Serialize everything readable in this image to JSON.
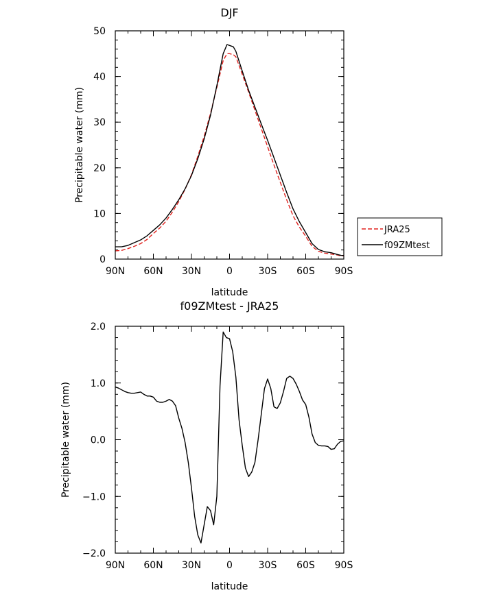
{
  "chart_data": [
    {
      "type": "line",
      "title": "DJF",
      "xlabel": "latitude",
      "ylabel": "Precipitable water (mm)",
      "xlim": [
        90,
        -90
      ],
      "ylim": [
        0,
        50
      ],
      "x_ticks": [
        90,
        60,
        30,
        0,
        -30,
        -60,
        -90
      ],
      "x_tick_labels": [
        "90N",
        "60N",
        "30N",
        "0",
        "30S",
        "60S",
        "90S"
      ],
      "y_ticks": [
        0,
        10,
        20,
        30,
        40,
        50
      ],
      "y_tick_labels": [
        "0",
        "10",
        "20",
        "30",
        "40",
        "50"
      ],
      "legend_position": "right",
      "series": [
        {
          "name": "JRA25",
          "color": "#e0201c",
          "dash": "dashed",
          "x": [
            90,
            85,
            80,
            75,
            70,
            65,
            60,
            55,
            50,
            45,
            40,
            35,
            30,
            25,
            20,
            15,
            10,
            5,
            2,
            0,
            -3,
            -5,
            -10,
            -15,
            -20,
            -25,
            -30,
            -35,
            -40,
            -45,
            -50,
            -55,
            -60,
            -65,
            -70,
            -75,
            -80,
            -85,
            -88,
            -90
          ],
          "y": [
            1.8,
            1.9,
            2.3,
            2.8,
            3.4,
            4.3,
            5.6,
            6.8,
            8.3,
            10.3,
            12.6,
            15.3,
            18.5,
            22.5,
            26.9,
            31.9,
            37.6,
            43.5,
            45.0,
            45.0,
            44.8,
            44.3,
            40.5,
            36.6,
            32.6,
            28.6,
            24.6,
            20.6,
            16.8,
            13.0,
            9.5,
            7.0,
            5.0,
            2.8,
            1.7,
            1.3,
            1.1,
            0.9,
            0.7,
            0.7
          ]
        },
        {
          "name": "f09ZMtest",
          "color": "#000000",
          "dash": "solid",
          "x": [
            90,
            85,
            80,
            75,
            70,
            65,
            60,
            55,
            50,
            45,
            40,
            35,
            30,
            25,
            20,
            15,
            10,
            5,
            2,
            0,
            -3,
            -5,
            -10,
            -15,
            -20,
            -25,
            -30,
            -35,
            -40,
            -45,
            -50,
            -55,
            -60,
            -65,
            -70,
            -75,
            -80,
            -85,
            -88,
            -90
          ],
          "y": [
            2.7,
            2.7,
            3.0,
            3.6,
            4.2,
            5.1,
            6.3,
            7.5,
            9.0,
            10.9,
            13.0,
            15.4,
            18.3,
            22.0,
            26.3,
            31.5,
            38.0,
            45.0,
            47.0,
            46.8,
            46.5,
            45.5,
            41.2,
            37.0,
            33.3,
            29.6,
            26.0,
            22.2,
            18.4,
            14.6,
            11.0,
            8.2,
            5.8,
            3.4,
            2.1,
            1.6,
            1.4,
            1.0,
            0.8,
            0.8
          ]
        }
      ]
    },
    {
      "type": "line",
      "title": "f09ZMtest - JRA25",
      "xlabel": "latitude",
      "ylabel": "Precipitable water (mm)",
      "xlim": [
        90,
        -90
      ],
      "ylim": [
        -2.0,
        2.0
      ],
      "x_ticks": [
        90,
        60,
        30,
        0,
        -30,
        -60,
        -90
      ],
      "x_tick_labels": [
        "90N",
        "60N",
        "30N",
        "0",
        "30S",
        "60S",
        "90S"
      ],
      "y_ticks": [
        -2.0,
        -1.0,
        0.0,
        1.0,
        2.0
      ],
      "y_tick_labels": [
        "−2.0",
        "−1.0",
        "0.0",
        "1.0",
        "2.0"
      ],
      "series": [
        {
          "name": "",
          "color": "#000000",
          "dash": "solid",
          "x": [
            90,
            87.5,
            85,
            82.5,
            80,
            77.5,
            75,
            72.5,
            70,
            67.5,
            65,
            62.5,
            60,
            57.5,
            55,
            52.5,
            50,
            47.5,
            45,
            42.5,
            40,
            37.5,
            35,
            32.5,
            30,
            27.5,
            25,
            22.5,
            20,
            17.5,
            15,
            12.5,
            10,
            7.5,
            5,
            2.5,
            0,
            -2.5,
            -5,
            -7.5,
            -10,
            -12.5,
            -15,
            -17.5,
            -20,
            -22.5,
            -25,
            -27.5,
            -30,
            -32.5,
            -35,
            -37.5,
            -40,
            -42.5,
            -45,
            -47.5,
            -50,
            -52.5,
            -55,
            -57.5,
            -60,
            -62.5,
            -65,
            -67.5,
            -70,
            -72.5,
            -75,
            -77.5,
            -80,
            -82.5,
            -85,
            -87.5,
            -90
          ],
          "y": [
            0.93,
            0.91,
            0.88,
            0.85,
            0.83,
            0.82,
            0.82,
            0.83,
            0.84,
            0.8,
            0.77,
            0.77,
            0.75,
            0.68,
            0.66,
            0.66,
            0.68,
            0.71,
            0.68,
            0.6,
            0.38,
            0.2,
            -0.05,
            -0.4,
            -0.85,
            -1.35,
            -1.68,
            -1.82,
            -1.5,
            -1.18,
            -1.25,
            -1.5,
            -1.0,
            0.95,
            1.9,
            1.8,
            1.78,
            1.55,
            1.1,
            0.35,
            -0.1,
            -0.5,
            -0.65,
            -0.57,
            -0.4,
            0.0,
            0.45,
            0.9,
            1.07,
            0.9,
            0.58,
            0.55,
            0.65,
            0.85,
            1.08,
            1.12,
            1.08,
            0.98,
            0.85,
            0.7,
            0.62,
            0.4,
            0.1,
            -0.05,
            -0.1,
            -0.11,
            -0.11,
            -0.12,
            -0.17,
            -0.16,
            -0.08,
            -0.03,
            -0.02
          ]
        }
      ]
    }
  ]
}
